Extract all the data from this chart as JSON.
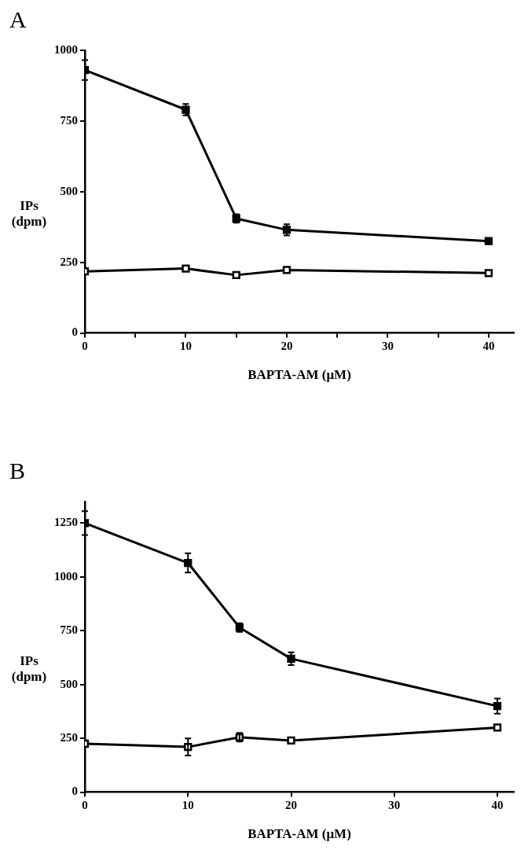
{
  "chart_data": [
    {
      "type": "line",
      "title": "A",
      "xlabel": "BAPTA-AM (μM)",
      "ylabel": "IPs (dpm)",
      "xlim": [
        0,
        42.5
      ],
      "ylim": [
        0,
        1000
      ],
      "xticks": [
        0,
        {
          "value": 5,
          "label": null
        },
        10,
        {
          "value": 15,
          "label": null
        },
        20,
        {
          "value": 25,
          "label": null
        },
        30,
        {
          "value": 35,
          "label": null
        },
        40
      ],
      "yticks": [
        0,
        250,
        500,
        750,
        1000
      ],
      "marker": "square",
      "line_style": "solid",
      "series": [
        {
          "color": "#000000",
          "x": [
            0,
            10,
            15,
            20,
            40
          ],
          "values": [
            930,
            790,
            405,
            365,
            325
          ],
          "errors": [
            35,
            20,
            15,
            20,
            10
          ]
        },
        {
          "color": "#000000",
          "x": [
            0,
            10,
            15,
            20,
            40
          ],
          "values": [
            218,
            228,
            205,
            223,
            212
          ]
        }
      ]
    },
    {
      "type": "line",
      "title": "B",
      "xlabel": "BAPTA-AM (μM)",
      "ylabel": "IPs (dpm)",
      "xlim": [
        0,
        41.6
      ],
      "ylim": [
        0,
        1350
      ],
      "xticks": [
        0,
        10,
        20,
        30,
        40
      ],
      "yticks": [
        0,
        250,
        500,
        750,
        1000,
        1250
      ],
      "marker": "square",
      "line_style": "solid",
      "series": [
        {
          "color": "#000000",
          "x": [
            0,
            10,
            15,
            20,
            40
          ],
          "values": [
            1250,
            1065,
            765,
            620,
            400
          ],
          "errors": [
            55,
            45,
            20,
            30,
            35
          ]
        },
        {
          "color": "#000000",
          "x": [
            0,
            10,
            15,
            20,
            40
          ],
          "values": [
            225,
            210,
            255,
            240,
            300
          ],
          "errors": [
            null,
            40,
            20,
            null,
            null
          ]
        }
      ]
    }
  ]
}
